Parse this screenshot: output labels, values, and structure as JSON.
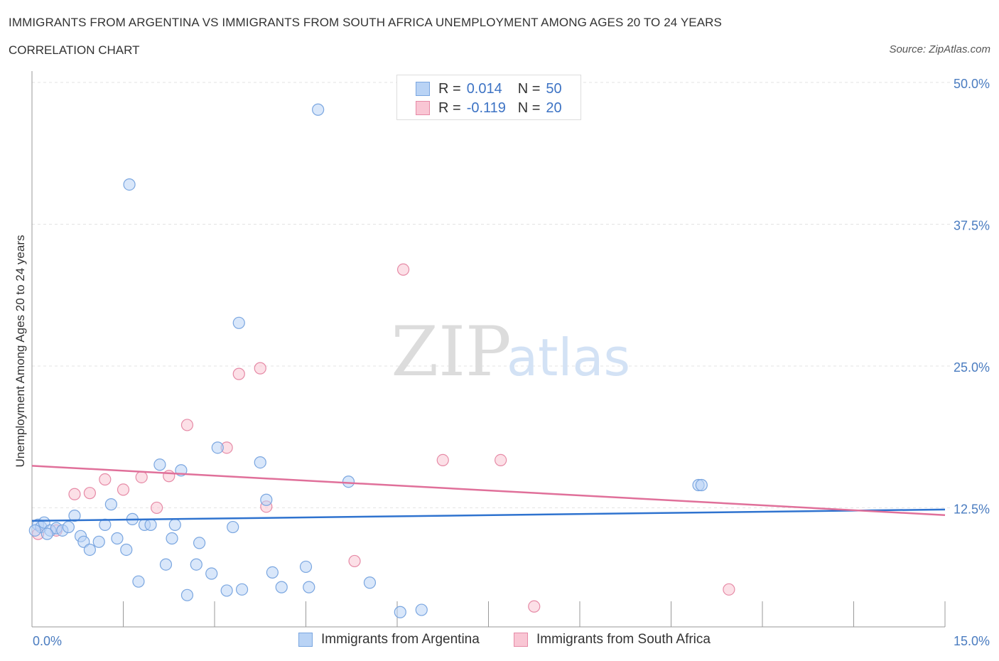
{
  "header": {
    "title": "IMMIGRANTS FROM ARGENTINA VS IMMIGRANTS FROM SOUTH AFRICA UNEMPLOYMENT AMONG AGES 20 TO 24 YEARS",
    "subtitle": "CORRELATION CHART",
    "source": "Source: ZipAtlas.com"
  },
  "watermark": {
    "zip": "ZIP",
    "atlas": "atlas"
  },
  "legend": {
    "r_label": "R =",
    "n_label": "N =",
    "rows": [
      {
        "r": "0.014",
        "n": "50",
        "swatch_fill": "#b9d3f5",
        "swatch_border": "#7aa6e0"
      },
      {
        "r": "-0.119",
        "n": "20",
        "swatch_fill": "#f9c6d4",
        "swatch_border": "#e68aa6"
      }
    ]
  },
  "bottom_legend": [
    {
      "label": "Immigrants from Argentina",
      "swatch_fill": "#b9d3f5",
      "swatch_border": "#7aa6e0"
    },
    {
      "label": "Immigrants from South Africa",
      "swatch_fill": "#f9c6d4",
      "swatch_border": "#e68aa6"
    }
  ],
  "chart_data": {
    "type": "scatter",
    "title": "IMMIGRANTS FROM ARGENTINA VS IMMIGRANTS FROM SOUTH AFRICA UNEMPLOYMENT AMONG AGES 20 TO 24 YEARS",
    "subtitle": "CORRELATION CHART",
    "xlabel": "",
    "ylabel": "Unemployment Among Ages 20 to 24 years",
    "xlim": [
      0,
      15
    ],
    "ylim": [
      2,
      51
    ],
    "x_tick_labels": [
      {
        "value": 0,
        "label": "0.0%"
      },
      {
        "value": 15,
        "label": "15.0%"
      }
    ],
    "y_tick_labels": [
      {
        "value": 12.5,
        "label": "12.5%"
      },
      {
        "value": 25,
        "label": "25.0%"
      },
      {
        "value": 37.5,
        "label": "37.5%"
      },
      {
        "value": 50,
        "label": "50.0%"
      }
    ],
    "x_minor_ticks": [
      1.5,
      3,
      4.5,
      6,
      7.5,
      9,
      10.5,
      12,
      13.5,
      15
    ],
    "grid": true,
    "legend_position": "top-center",
    "series": [
      {
        "name": "Immigrants from Argentina",
        "color": "#7aa6e0",
        "fill": "#b9d3f5",
        "points": [
          [
            0.1,
            11.0
          ],
          [
            0.15,
            10.8
          ],
          [
            0.2,
            11.2
          ],
          [
            0.3,
            10.5
          ],
          [
            0.4,
            10.7
          ],
          [
            0.5,
            10.5
          ],
          [
            0.6,
            10.8
          ],
          [
            0.7,
            11.8
          ],
          [
            0.8,
            10.0
          ],
          [
            0.85,
            9.5
          ],
          [
            0.95,
            8.8
          ],
          [
            1.1,
            9.5
          ],
          [
            1.3,
            12.8
          ],
          [
            1.2,
            11.0
          ],
          [
            1.4,
            9.8
          ],
          [
            1.55,
            8.8
          ],
          [
            1.6,
            41.0
          ],
          [
            1.65,
            11.5
          ],
          [
            1.75,
            6.0
          ],
          [
            1.85,
            11.0
          ],
          [
            1.95,
            11.0
          ],
          [
            2.1,
            16.3
          ],
          [
            2.2,
            7.5
          ],
          [
            2.3,
            9.8
          ],
          [
            2.35,
            11.0
          ],
          [
            2.45,
            15.8
          ],
          [
            2.55,
            4.8
          ],
          [
            2.7,
            7.5
          ],
          [
            2.75,
            9.4
          ],
          [
            2.95,
            6.7
          ],
          [
            3.05,
            17.8
          ],
          [
            3.2,
            5.2
          ],
          [
            3.3,
            10.8
          ],
          [
            3.4,
            28.8
          ],
          [
            3.45,
            5.3
          ],
          [
            3.75,
            16.5
          ],
          [
            3.85,
            13.2
          ],
          [
            3.95,
            6.8
          ],
          [
            4.1,
            5.5
          ],
          [
            4.5,
            7.3
          ],
          [
            4.55,
            5.5
          ],
          [
            4.7,
            47.6
          ],
          [
            5.2,
            14.8
          ],
          [
            5.55,
            5.9
          ],
          [
            6.05,
            3.3
          ],
          [
            6.4,
            3.5
          ],
          [
            10.95,
            14.5
          ],
          [
            11.0,
            14.5
          ],
          [
            0.05,
            10.5
          ],
          [
            0.25,
            10.2
          ]
        ]
      },
      {
        "name": "Immigrants from South Africa",
        "color": "#e68aa6",
        "fill": "#f9c6d4",
        "points": [
          [
            0.1,
            10.2
          ],
          [
            0.4,
            10.5
          ],
          [
            0.7,
            13.7
          ],
          [
            0.95,
            13.8
          ],
          [
            1.2,
            15.0
          ],
          [
            1.5,
            14.1
          ],
          [
            1.8,
            15.2
          ],
          [
            2.05,
            12.5
          ],
          [
            2.25,
            15.3
          ],
          [
            2.55,
            19.8
          ],
          [
            3.2,
            17.8
          ],
          [
            3.4,
            24.3
          ],
          [
            3.75,
            24.8
          ],
          [
            3.85,
            12.6
          ],
          [
            5.3,
            7.8
          ],
          [
            6.1,
            33.5
          ],
          [
            6.75,
            16.7
          ],
          [
            7.7,
            16.7
          ],
          [
            8.25,
            3.8
          ],
          [
            11.45,
            5.3
          ]
        ]
      }
    ],
    "trendlines": [
      {
        "series": "Immigrants from Argentina",
        "color": "#2f73cf",
        "from": [
          0,
          11.35
        ],
        "to": [
          15,
          12.35
        ]
      },
      {
        "series": "Immigrants from South Africa",
        "color": "#e0709a",
        "from": [
          0,
          16.2
        ],
        "to": [
          15,
          11.85
        ]
      }
    ]
  }
}
